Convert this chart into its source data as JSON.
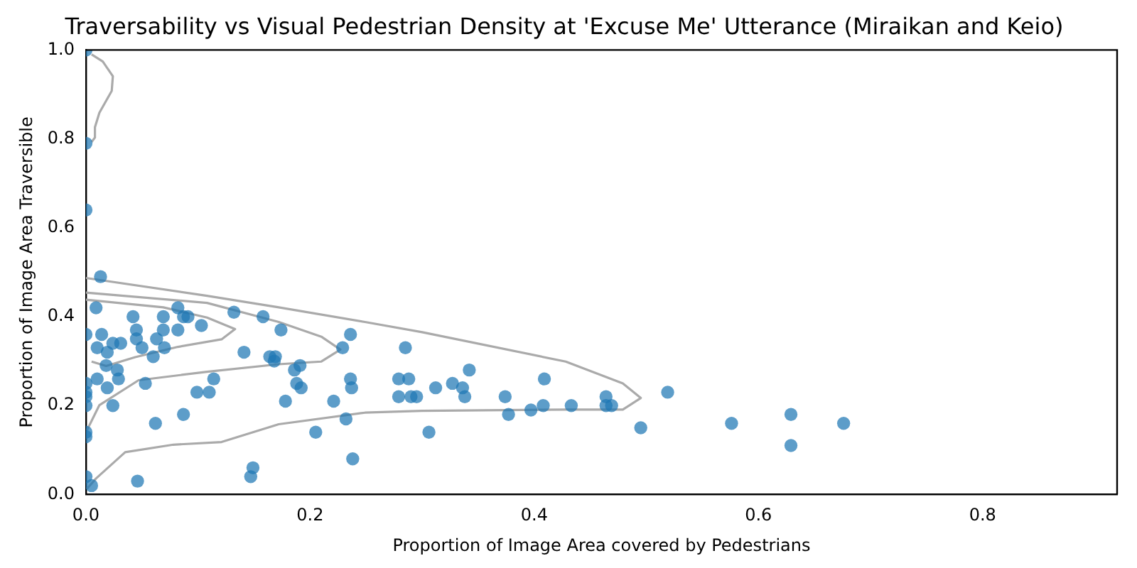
{
  "chart_data": {
    "type": "scatter",
    "title": "Traversability vs Visual Pedestrian Density at 'Excuse Me' Utterance (Miraikan and Keio)",
    "xlabel": "Proportion of Image Area covered by Pedestrians",
    "ylabel": "Proportion of Image Area Traversible",
    "xlim": [
      0,
      0.92
    ],
    "ylim": [
      0,
      1
    ],
    "xticks": [
      {
        "value": 0,
        "label": "0.0"
      },
      0.2,
      0.4,
      0.6,
      0.8
    ],
    "yticks": [
      {
        "value": 0,
        "label": "0.0"
      },
      0.2,
      0.4,
      0.6,
      0.8,
      {
        "value": 1,
        "label": "1.0"
      }
    ],
    "grid": false,
    "legend": false,
    "marker": "circle",
    "series": [
      {
        "type": "line",
        "color": "#aaaaaa",
        "marker": "none",
        "x": [
          0,
          0.108,
          0.172,
          0.249,
          0.3,
          0.428,
          0.479,
          0.495,
          0.479,
          0.428,
          0.3,
          0.249,
          0.172,
          0.121,
          0.078,
          0.035,
          0.009,
          0.001
        ],
        "values": [
          0.487,
          0.447,
          0.421,
          0.388,
          0.365,
          0.299,
          0.25,
          0.217,
          0.191,
          0.191,
          0.188,
          0.184,
          0.158,
          0.118,
          0.112,
          0.095,
          0.036,
          0.013
        ]
      },
      {
        "type": "line",
        "color": "#aaaaaa",
        "marker": "none",
        "x": [
          0,
          0.108,
          0.172,
          0.21,
          0.227,
          0.21,
          0.172,
          0.108,
          0.047,
          0.012,
          0.001
        ],
        "values": [
          0.454,
          0.431,
          0.388,
          0.355,
          0.326,
          0.299,
          0.293,
          0.276,
          0.257,
          0.201,
          0.145
        ]
      },
      {
        "type": "line",
        "color": "#aaaaaa",
        "marker": "none",
        "x": [
          0,
          0.069,
          0.108,
          0.133,
          0.121,
          0.082,
          0.044,
          0.018,
          0.005
        ],
        "values": [
          0.438,
          0.421,
          0.398,
          0.372,
          0.349,
          0.332,
          0.309,
          0.289,
          0.299
        ]
      },
      {
        "type": "line",
        "color": "#aaaaaa",
        "marker": "none",
        "x": [
          0.005,
          0.015,
          0.024,
          0.023,
          0.012,
          0.008,
          0.008,
          0.005
        ],
        "values": [
          0.99,
          0.974,
          0.941,
          0.908,
          0.859,
          0.826,
          0.803,
          0.793
        ]
      },
      {
        "color": "#1f77b4",
        "x": [
          0,
          0,
          0,
          0.013,
          0.009,
          0,
          0.014,
          0.01,
          0.019,
          0.024,
          0.031,
          0.018,
          0.028,
          0.01,
          0,
          0.019,
          0.029,
          0,
          0,
          0,
          0.024,
          0.042,
          0.045,
          0.045,
          0.05,
          0.06,
          0.053,
          0.069,
          0.069,
          0.063,
          0.07,
          0.082,
          0.082,
          0.087,
          0.091,
          0.103,
          0.062,
          0.087,
          0.099,
          0.11,
          0.114,
          0.132,
          0.141,
          0.158,
          0.164,
          0.168,
          0.169,
          0.174,
          0.178,
          0.186,
          0.188,
          0.191,
          0.192,
          0.205,
          0.221,
          0.229,
          0.236,
          0.236,
          0.237,
          0.232,
          0.238,
          0.147,
          0.149,
          0.046,
          0.005,
          0,
          0,
          0,
          0.285,
          0.288,
          0.279,
          0.279,
          0.29,
          0.295,
          0.306,
          0.312,
          0.327,
          0.336,
          0.338,
          0.342,
          0.374,
          0.377,
          0.397,
          0.408,
          0.409,
          0.433,
          0.464,
          0.464,
          0.469,
          0.495,
          0.519,
          0.576,
          0.629,
          0.629,
          0.676
        ],
        "values": [
          1,
          0.79,
          0.64,
          0.49,
          0.42,
          0.36,
          0.36,
          0.33,
          0.32,
          0.34,
          0.34,
          0.29,
          0.28,
          0.26,
          0.25,
          0.24,
          0.26,
          0.22,
          0.2,
          0.23,
          0.2,
          0.4,
          0.37,
          0.35,
          0.33,
          0.31,
          0.25,
          0.37,
          0.4,
          0.35,
          0.33,
          0.37,
          0.42,
          0.4,
          0.4,
          0.38,
          0.16,
          0.18,
          0.23,
          0.23,
          0.26,
          0.41,
          0.32,
          0.4,
          0.31,
          0.3,
          0.31,
          0.37,
          0.21,
          0.28,
          0.25,
          0.29,
          0.24,
          0.14,
          0.21,
          0.33,
          0.36,
          0.26,
          0.24,
          0.17,
          0.08,
          0.04,
          0.06,
          0.03,
          0.02,
          0.04,
          0.14,
          0.13,
          0.33,
          0.26,
          0.26,
          0.22,
          0.22,
          0.22,
          0.14,
          0.24,
          0.25,
          0.24,
          0.22,
          0.28,
          0.22,
          0.18,
          0.19,
          0.2,
          0.26,
          0.2,
          0.22,
          0.2,
          0.2,
          0.15,
          0.23,
          0.16,
          0.18,
          0.11,
          0.16
        ]
      }
    ]
  }
}
